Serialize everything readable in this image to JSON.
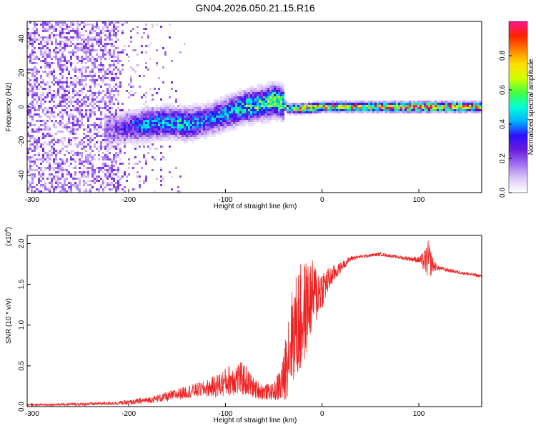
{
  "title": "GN04.2026.050.21.15.R16",
  "chart_data": [
    {
      "type": "heatmap",
      "xlabel": "Height of straight line (km)",
      "ylabel": "Frequency (Hz)",
      "xlim": [
        -305,
        165
      ],
      "ylim": [
        -50,
        50
      ],
      "xticks": [
        -300,
        -200,
        -100,
        0,
        100
      ],
      "yticks": [
        40,
        20,
        0,
        -20,
        -40
      ],
      "colorbar": {
        "label": "Normalized spectral amplitude",
        "range": [
          0,
          1
        ],
        "ticks": [
          "0.0",
          "0.2",
          "0.4",
          "0.6",
          "0.8"
        ],
        "tick_values": [
          0,
          0.2,
          0.4,
          0.6,
          0.8
        ],
        "colors": [
          "#ffffff",
          "#dcc8f8",
          "#a070f0",
          "#6a1be0",
          "#2a10ff",
          "#00b4ff",
          "#00ffd8",
          "#40ff40",
          "#d0ff00",
          "#ffe000",
          "#ff8000",
          "#ff2000",
          "#ff1493"
        ]
      },
      "ridge": {
        "note": "frequency of the main spectral ridge vs height",
        "x": [
          -220,
          -200,
          -180,
          -160,
          -140,
          -120,
          -100,
          -80,
          -60,
          -50,
          -40,
          -35,
          -30,
          -20,
          0,
          50,
          100,
          165
        ],
        "y": [
          -13,
          -12,
          -10,
          -9,
          -10,
          -8,
          -4,
          0,
          2,
          4,
          2,
          -1,
          -1,
          -1,
          0,
          0,
          0,
          0
        ],
        "amplitude": [
          0.15,
          0.3,
          0.4,
          0.4,
          0.45,
          0.35,
          0.4,
          0.5,
          0.55,
          0.6,
          0.55,
          0.55,
          0.65,
          0.8,
          0.7,
          0.75,
          0.9,
          0.7
        ]
      }
    },
    {
      "type": "line",
      "xlabel": "Height of straight line (km)",
      "ylabel": "SNR (10 * v/v)",
      "scale_label": "(x10",
      "scale_exp": "4",
      "scale_close": ")",
      "xlim": [
        -305,
        165
      ],
      "ylim": [
        0,
        2.1
      ],
      "xticks": [
        -300,
        -200,
        -100,
        0,
        100
      ],
      "yticks": [
        0.0,
        0.5,
        1.0,
        1.5,
        2.0
      ],
      "ytick_labels": [
        "0.0",
        "0.5",
        "1.0",
        "1.5",
        "2.0"
      ],
      "color": "#ee2222",
      "series": [
        {
          "name": "SNR",
          "x": [
            -305,
            -250,
            -220,
            -200,
            -180,
            -160,
            -140,
            -120,
            -110,
            -100,
            -90,
            -80,
            -70,
            -60,
            -50,
            -45,
            -40,
            -35,
            -30,
            -25,
            -20,
            -15,
            -10,
            -5,
            0,
            10,
            20,
            30,
            40,
            60,
            80,
            100,
            105,
            110,
            115,
            120,
            140,
            165
          ],
          "y": [
            0.02,
            0.03,
            0.04,
            0.05,
            0.08,
            0.12,
            0.18,
            0.22,
            0.25,
            0.3,
            0.35,
            0.33,
            0.22,
            0.18,
            0.18,
            0.25,
            0.32,
            0.7,
            0.9,
            1.0,
            1.1,
            1.25,
            1.35,
            1.4,
            1.45,
            1.6,
            1.72,
            1.82,
            1.84,
            1.87,
            1.83,
            1.8,
            1.78,
            1.8,
            1.73,
            1.7,
            1.65,
            1.6
          ],
          "noise": [
            0.01,
            0.02,
            0.02,
            0.03,
            0.04,
            0.06,
            0.08,
            0.1,
            0.14,
            0.18,
            0.22,
            0.2,
            0.12,
            0.1,
            0.1,
            0.2,
            0.3,
            0.55,
            0.6,
            0.7,
            0.7,
            0.55,
            0.45,
            0.35,
            0.25,
            0.12,
            0.06,
            0.03,
            0.02,
            0.02,
            0.02,
            0.04,
            0.12,
            0.25,
            0.08,
            0.03,
            0.02,
            0.02
          ]
        }
      ]
    }
  ]
}
